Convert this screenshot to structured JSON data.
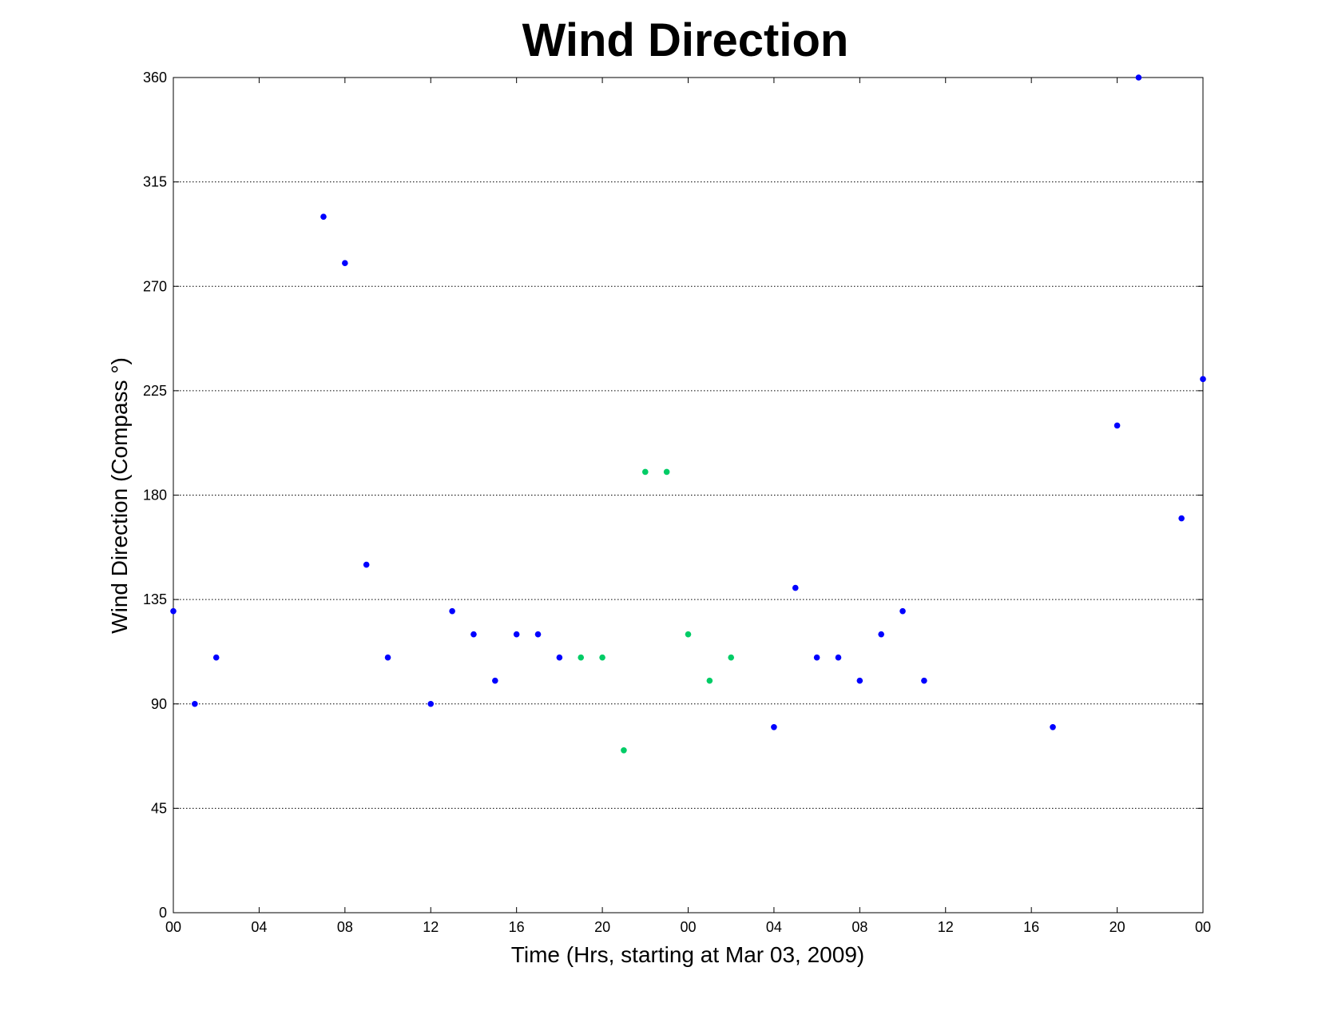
{
  "chart_data": {
    "type": "scatter",
    "title": "Wind Direction",
    "xlabel": "Time (Hrs, starting at Mar 03, 2009)",
    "ylabel": "Wind Direction (Compass °)",
    "xlim": [
      0,
      48
    ],
    "ylim": [
      0,
      360
    ],
    "x_ticks": [
      0,
      4,
      8,
      12,
      16,
      20,
      24,
      28,
      32,
      36,
      40,
      44,
      48
    ],
    "x_tick_labels": [
      "00",
      "04",
      "08",
      "12",
      "16",
      "20",
      "00",
      "04",
      "08",
      "12",
      "16",
      "20",
      "00"
    ],
    "y_ticks": [
      0,
      45,
      90,
      135,
      180,
      225,
      270,
      315,
      360
    ],
    "y_tick_labels": [
      "0",
      "45",
      "90",
      "135",
      "180",
      "225",
      "270",
      "315",
      "360"
    ],
    "grid": "horizontal dotted",
    "series": [
      {
        "color": "#0000ff",
        "x": [
          0,
          1,
          2,
          7,
          8,
          9,
          10,
          12,
          13,
          14,
          15,
          16,
          17,
          18,
          28,
          29,
          30,
          31,
          32,
          33,
          34,
          35,
          41,
          44,
          45,
          47,
          48
        ],
        "y": [
          130,
          90,
          110,
          300,
          280,
          150,
          110,
          90,
          130,
          120,
          100,
          120,
          120,
          110,
          80,
          140,
          110,
          110,
          100,
          120,
          130,
          100,
          80,
          210,
          360,
          170,
          230
        ]
      },
      {
        "color": "#00cc66",
        "x": [
          19,
          20,
          21,
          22,
          23,
          24,
          25,
          26
        ],
        "y": [
          110,
          110,
          70,
          190,
          190,
          120,
          100,
          110
        ]
      }
    ]
  }
}
